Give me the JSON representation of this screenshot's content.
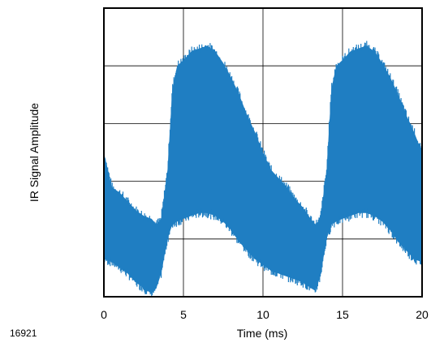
{
  "figure_id": "16921",
  "chart_data": {
    "type": "area",
    "title": "",
    "xlabel": "Time (ms)",
    "ylabel": "IR Signal Amplitude",
    "xlim": [
      0,
      20
    ],
    "ylim": [
      0,
      100
    ],
    "x_ticks": [
      0,
      5,
      10,
      15,
      20
    ],
    "y_tick_labels_shown": false,
    "grid": true,
    "legend": "none",
    "colors": {
      "signal": "#1f7ec2"
    },
    "series": [
      {
        "x": [
          0,
          0.5,
          1,
          1.5,
          2,
          2.5,
          3,
          3.3,
          3.6,
          4,
          4.3,
          4.6,
          5,
          5.5,
          6,
          6.5,
          7,
          7.5,
          8,
          8.5,
          9,
          9.5,
          10,
          10.5,
          11,
          11.5,
          12,
          12.5,
          13,
          13.3,
          13.6,
          14,
          14.3,
          14.6,
          15,
          15.5,
          16,
          16.5,
          17,
          17.5,
          18,
          18.5,
          19,
          19.5,
          20
        ],
        "upper": [
          50,
          38,
          36,
          33,
          30,
          28,
          27,
          25,
          27,
          44,
          72,
          80,
          82,
          85,
          86,
          87,
          85,
          81,
          76,
          70,
          63,
          57,
          50,
          44,
          41,
          38,
          34,
          31,
          27,
          25,
          27,
          44,
          72,
          80,
          82,
          85,
          86,
          87,
          85,
          81,
          76,
          70,
          63,
          57,
          50
        ],
        "lower": [
          13,
          12,
          10,
          8,
          5,
          3,
          1,
          3,
          8,
          20,
          25,
          26,
          27,
          28,
          29,
          29,
          28,
          26,
          23,
          19,
          16,
          13,
          11,
          9,
          8,
          7,
          6,
          5,
          3,
          2,
          7,
          20,
          25,
          26,
          27,
          28,
          29,
          29,
          28,
          26,
          23,
          19,
          16,
          13,
          12
        ]
      }
    ]
  }
}
